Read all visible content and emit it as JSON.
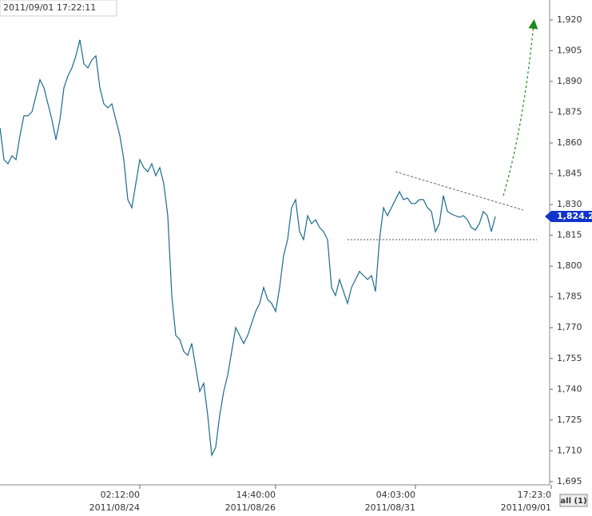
{
  "chart_data": {
    "type": "line",
    "timestamp": "2011/09/01 17:22:11",
    "button": "all (1)",
    "color": "#1a6b8c",
    "x": [
      0,
      1,
      2,
      3,
      4,
      5,
      6,
      7,
      8,
      9,
      10,
      11,
      12,
      13,
      14,
      15,
      16,
      17,
      18,
      19,
      20,
      21,
      22,
      23,
      24,
      25,
      26,
      27,
      28,
      29,
      30,
      31,
      32,
      33,
      34,
      35,
      36,
      37,
      38,
      39,
      40,
      41,
      42,
      43,
      44,
      45,
      46,
      47,
      48,
      49,
      50,
      51,
      52,
      53,
      54,
      55,
      56,
      57,
      58,
      59,
      60,
      61,
      62,
      63,
      64,
      65,
      66,
      67,
      68,
      69,
      70,
      71,
      72,
      73,
      74,
      75,
      76,
      77,
      78,
      79,
      80,
      81,
      82,
      83,
      84,
      85,
      86,
      87,
      88,
      89,
      90,
      91,
      92,
      93,
      94,
      95,
      96,
      97,
      98,
      99,
      100,
      101,
      102,
      103,
      104,
      105,
      106,
      107,
      108,
      109,
      110,
      111,
      112,
      113,
      114,
      115,
      116,
      117,
      118,
      119,
      120,
      121,
      122,
      123,
      124
    ],
    "values": [
      1867.4,
      1851.9,
      1849.9,
      1853.8,
      1851.9,
      1863.6,
      1873.3,
      1873.3,
      1875.2,
      1883.0,
      1890.8,
      1886.9,
      1879.1,
      1871.3,
      1861.6,
      1871.3,
      1886.9,
      1892.7,
      1896.6,
      1902.5,
      1910.3,
      1898.6,
      1896.6,
      1900.5,
      1902.5,
      1886.9,
      1879.1,
      1877.2,
      1879.1,
      1871.3,
      1863.6,
      1851.9,
      1832.4,
      1828.5,
      1840.2,
      1851.9,
      1848.0,
      1846.0,
      1849.9,
      1844.1,
      1848.0,
      1840.2,
      1824.6,
      1785.7,
      1766.2,
      1764.3,
      1758.4,
      1756.5,
      1762.3,
      1750.7,
      1738.9,
      1742.9,
      1727.3,
      1707.8,
      1711.7,
      1727.3,
      1738.9,
      1746.8,
      1758.4,
      1770.1,
      1766.2,
      1762.3,
      1766.2,
      1772.1,
      1777.9,
      1781.8,
      1789.6,
      1783.7,
      1781.8,
      1777.9,
      1789.6,
      1805.2,
      1812.9,
      1828.5,
      1832.4,
      1816.8,
      1812.9,
      1824.6,
      1820.7,
      1822.6,
      1818.8,
      1816.8,
      1812.9,
      1789.6,
      1785.7,
      1793.5,
      1787.6,
      1781.8,
      1789.6,
      1793.5,
      1797.4,
      1795.4,
      1793.5,
      1795.4,
      1787.6,
      1812.9,
      1828.5,
      1824.6,
      1828.5,
      1832.4,
      1836.3,
      1832.4,
      1833.2,
      1830.5,
      1830.5,
      1832.4,
      1832.4,
      1828.5,
      1826.6,
      1816.8,
      1820.7,
      1834.4,
      1826.6,
      1825.4,
      1824.6,
      1823.8,
      1824.6,
      1822.6,
      1818.8,
      1817.6,
      1820.7,
      1826.6,
      1824.6,
      1816.8,
      1824.2
    ],
    "last_price": {
      "value": 1824.2,
      "label": "1,824.2"
    },
    "xlim": [
      0,
      138
    ],
    "xticks": [
      {
        "value": 35,
        "label": "02:12:00"
      },
      {
        "value": 69,
        "label": "14:40:00"
      },
      {
        "value": 104,
        "label": "04:03:00"
      },
      {
        "value": 138,
        "label": "17:23:0"
      }
    ],
    "xtick_dates": [
      "2011/08/24",
      "2011/08/26",
      "2011/08/31",
      "2011/09/01"
    ],
    "ylim": [
      1693.4,
      1929.7
    ],
    "yticks": [
      {
        "value": 1695,
        "label": "1,695"
      },
      {
        "value": 1710,
        "label": "1,710"
      },
      {
        "value": 1725,
        "label": "1,725"
      },
      {
        "value": 1740,
        "label": "1,740"
      },
      {
        "value": 1755,
        "label": "1,755"
      },
      {
        "value": 1770,
        "label": "1,770"
      },
      {
        "value": 1785,
        "label": "1,785"
      },
      {
        "value": 1800,
        "label": "1,800"
      },
      {
        "value": 1815,
        "label": "1,815"
      },
      {
        "value": 1830,
        "label": "1,830"
      },
      {
        "value": 1845,
        "label": "1,845"
      },
      {
        "value": 1860,
        "label": "1,860"
      },
      {
        "value": 1875,
        "label": "1,875"
      },
      {
        "value": 1890,
        "label": "1,890"
      },
      {
        "value": 1905,
        "label": "1,905"
      },
      {
        "value": 1920,
        "label": "1,920"
      }
    ]
  }
}
